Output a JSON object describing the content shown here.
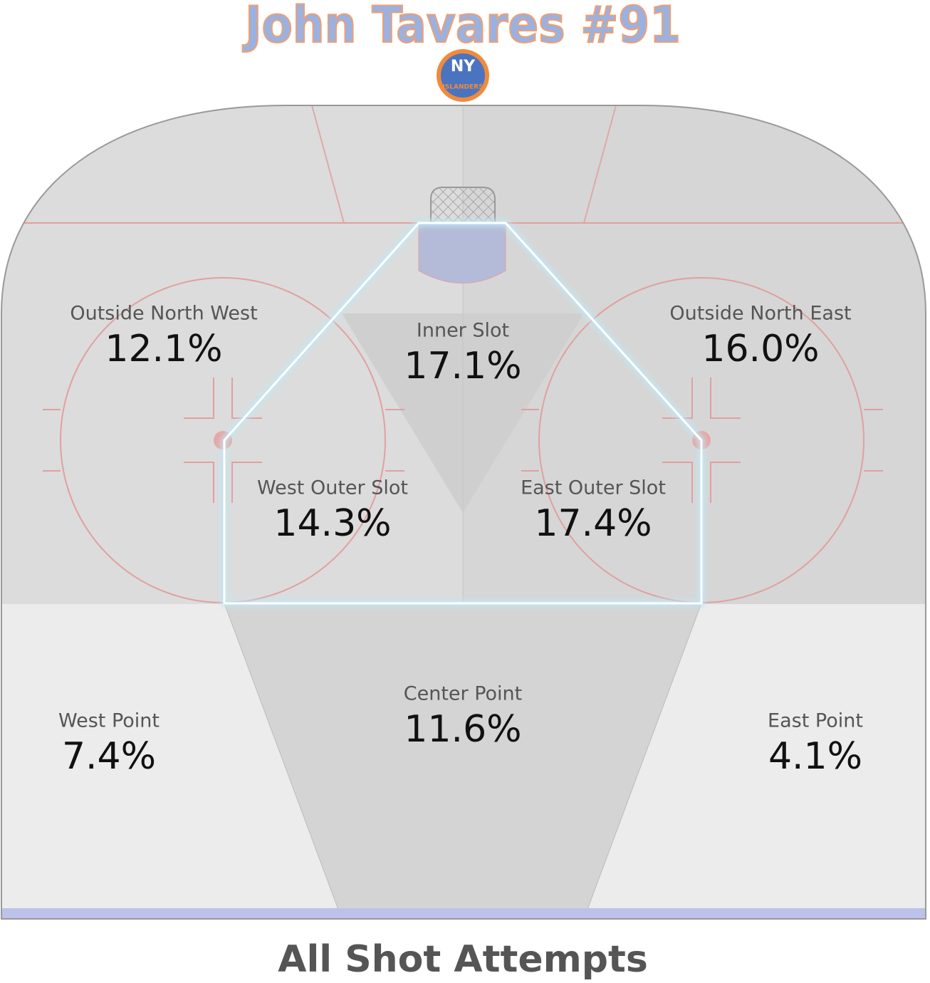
{
  "header": {
    "title": "John Tavares #91",
    "logo": {
      "top": "NY",
      "bottom": "ISLANDERS"
    }
  },
  "zones": [
    {
      "name": "Outside North West",
      "value": "12.1%"
    },
    {
      "name": "Inner Slot",
      "value": "17.1%"
    },
    {
      "name": "Outside North East",
      "value": "16.0%"
    },
    {
      "name": "West Outer Slot",
      "value": "14.3%"
    },
    {
      "name": "East Outer Slot",
      "value": "17.4%"
    },
    {
      "name": "Center Point",
      "value": "11.6%"
    },
    {
      "name": "West Point",
      "value": "7.4%"
    },
    {
      "name": "East Point",
      "value": "4.1%"
    }
  ],
  "footer": {
    "caption": "All Shot Attempts"
  }
}
